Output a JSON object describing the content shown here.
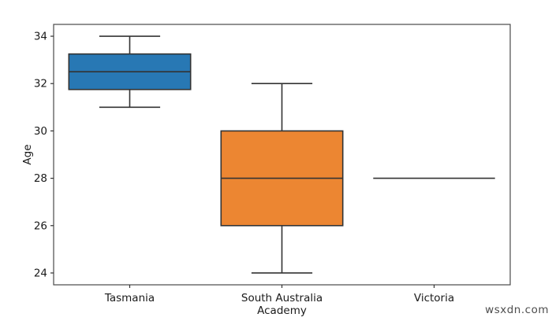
{
  "figure": {
    "background_color": "#ffffff",
    "frame_color": "#4a4a4a"
  },
  "watermark": {
    "text": "wsxdn.com",
    "color": "#4d4d4d"
  },
  "chart_data": {
    "type": "boxplot",
    "xlabel": "Academy",
    "ylabel": "Age",
    "categories": [
      "Tasmania",
      "South Australia",
      "Victoria"
    ],
    "series": [
      {
        "category": "Tasmania",
        "whisker_low": 31,
        "q1": 31.75,
        "median": 32.5,
        "q3": 33.25,
        "whisker_high": 34,
        "fill_color": "#2878b4"
      },
      {
        "category": "South Australia",
        "whisker_low": 24,
        "q1": 26,
        "median": 28,
        "q3": 30,
        "whisker_high": 32,
        "fill_color": "#ec8632"
      },
      {
        "category": "Victoria",
        "whisker_low": 28,
        "q1": 28,
        "median": 28,
        "q3": 28,
        "whisker_high": 28,
        "fill_color": null
      }
    ],
    "yticks": [
      24,
      26,
      28,
      30,
      32,
      34
    ],
    "ylim": [
      23.5,
      34.5
    ],
    "grid": false,
    "legend": "none",
    "line_color": "#333333",
    "tick_label_color": "#1a1a1a"
  }
}
